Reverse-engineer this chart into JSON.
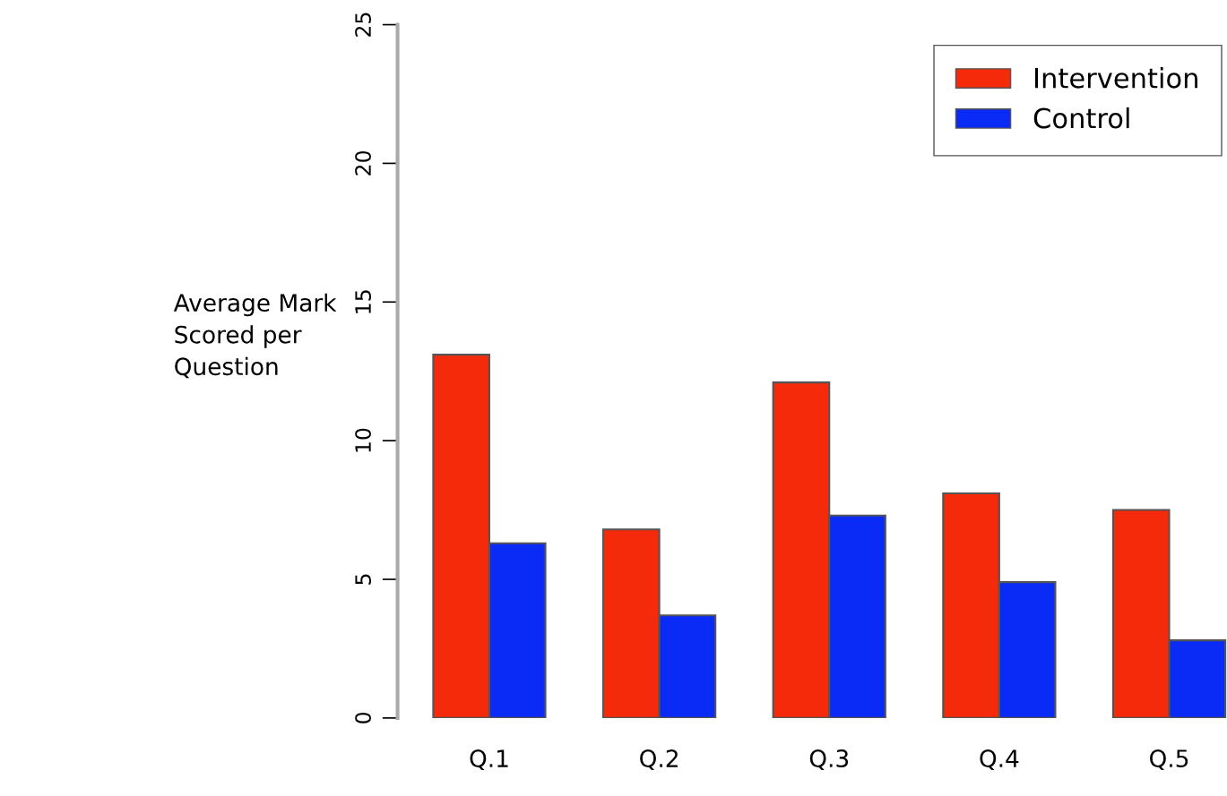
{
  "chart_data": {
    "type": "bar",
    "ylabel": "Average Mark\nScored per\nQuestion",
    "categories": [
      "Q.1",
      "Q.2",
      "Q.3",
      "Q.4",
      "Q.5"
    ],
    "series": [
      {
        "name": "Intervention",
        "color": "#f52a0a",
        "values": [
          13.1,
          6.8,
          12.1,
          8.1,
          7.5
        ]
      },
      {
        "name": "Control",
        "color": "#0a2af5",
        "values": [
          6.3,
          3.7,
          7.3,
          4.9,
          2.8
        ]
      }
    ],
    "ylim": [
      0,
      25
    ],
    "yticks": [
      0,
      5,
      10,
      15,
      20,
      25
    ],
    "grid": false,
    "legend": "top right"
  }
}
